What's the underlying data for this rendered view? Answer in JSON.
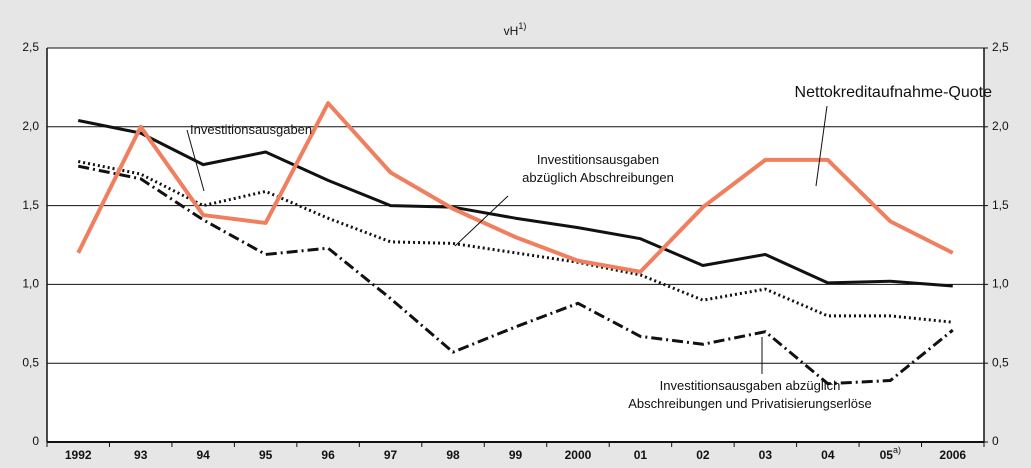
{
  "chart_data": {
    "type": "line",
    "ylabel": "vH",
    "ylabel_superscript": "1)",
    "categories": [
      "1992",
      "93",
      "94",
      "95",
      "96",
      "97",
      "98",
      "99",
      "2000",
      "01",
      "02",
      "03",
      "04",
      "05",
      "2006"
    ],
    "category_superscripts": [
      null,
      null,
      null,
      null,
      null,
      null,
      null,
      null,
      null,
      null,
      null,
      null,
      null,
      "a)",
      null
    ],
    "ylim": [
      0,
      2.5
    ],
    "yticks": [
      0,
      {
        "value": 0.5,
        "label": "0,5"
      },
      {
        "value": 1.0,
        "label": "1,0"
      },
      {
        "value": 1.5,
        "label": "1,5"
      },
      {
        "value": 2.0,
        "label": "2,0"
      },
      {
        "value": 2.5,
        "label": "2,5"
      }
    ],
    "y2lim": [
      0,
      2.5
    ],
    "y2ticks": [
      0,
      {
        "value": 0.5,
        "label": "0,5"
      },
      {
        "value": 1.0,
        "label": "1,0"
      },
      {
        "value": 1.5,
        "label": "1,5"
      },
      {
        "value": 2.0,
        "label": "2,0"
      },
      {
        "value": 2.5,
        "label": "2,5"
      }
    ],
    "grid": true,
    "series": [
      {
        "name": "Investitionsausgaben",
        "color": "#111111",
        "style": "solid",
        "values": [
          2.04,
          1.96,
          1.76,
          1.84,
          1.66,
          1.5,
          1.49,
          1.42,
          1.36,
          1.29,
          1.12,
          1.19,
          1.01,
          1.02,
          0.99
        ]
      },
      {
        "name": "Investitionsausgaben\nabzüglich Abschreibungen",
        "color": "#111111",
        "style": "dotted",
        "values": [
          1.78,
          1.7,
          1.5,
          1.59,
          1.42,
          1.27,
          1.26,
          1.2,
          1.14,
          1.06,
          0.9,
          0.97,
          0.8,
          0.8,
          0.76
        ]
      },
      {
        "name": "Investitionsausgaben abzüglich\nAbschreibungen und Privatisierungserlöse",
        "color": "#111111",
        "style": "dashdot",
        "values": [
          1.75,
          1.67,
          1.41,
          1.19,
          1.23,
          0.91,
          0.57,
          0.73,
          0.88,
          0.67,
          0.62,
          0.7,
          0.37,
          0.39,
          0.71
        ]
      },
      {
        "name": "Nettokreditaufnahme-Quote",
        "color": "#f07f5f",
        "style": "solid",
        "values": [
          1.2,
          2.0,
          1.44,
          1.39,
          2.15,
          1.71,
          1.48,
          1.3,
          1.15,
          1.08,
          1.49,
          1.79,
          1.79,
          1.4,
          1.2
        ]
      }
    ]
  }
}
